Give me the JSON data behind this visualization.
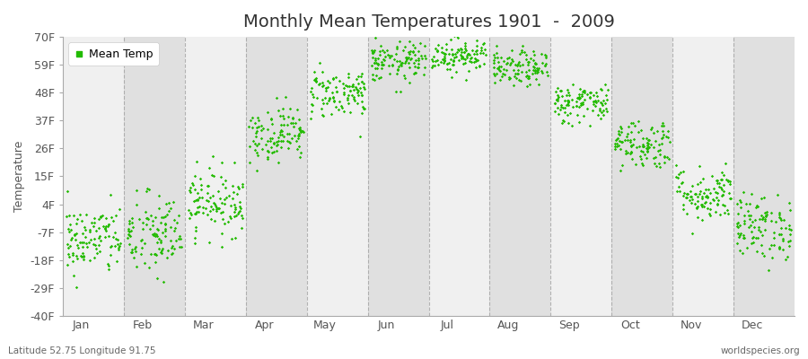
{
  "title": "Monthly Mean Temperatures 1901  -  2009",
  "ylabel": "Temperature",
  "xlabel_months": [
    "Jan",
    "Feb",
    "Mar",
    "Apr",
    "May",
    "Jun",
    "Jul",
    "Aug",
    "Sep",
    "Oct",
    "Nov",
    "Dec"
  ],
  "yticks": [
    -40,
    -29,
    -18,
    -7,
    4,
    15,
    26,
    37,
    48,
    59,
    70
  ],
  "ytick_labels": [
    "-40F",
    "-29F",
    "-18F",
    "-7F",
    "4F",
    "15F",
    "26F",
    "37F",
    "48F",
    "59F",
    "70F"
  ],
  "ylim": [
    -40,
    70
  ],
  "dot_color": "#22bb00",
  "dot_size": 3,
  "background_color": "#ffffff",
  "band_light": "#f0f0f0",
  "band_dark": "#e0e0e0",
  "grid_color": "#999999",
  "title_fontsize": 14,
  "axis_fontsize": 9,
  "tick_fontsize": 9,
  "footer_left": "Latitude 52.75 Longitude 91.75",
  "footer_right": "worldspecies.org",
  "legend_label": "Mean Temp",
  "mean_temps_f": [
    -10.0,
    -8.5,
    5.0,
    32.0,
    48.0,
    60.0,
    63.0,
    57.5,
    44.0,
    28.0,
    8.0,
    -5.0
  ],
  "std_temps_f": [
    7.0,
    8.5,
    6.5,
    5.5,
    5.0,
    4.0,
    3.5,
    3.5,
    4.0,
    5.0,
    5.5,
    6.5
  ],
  "n_years": 109,
  "seed": 42
}
